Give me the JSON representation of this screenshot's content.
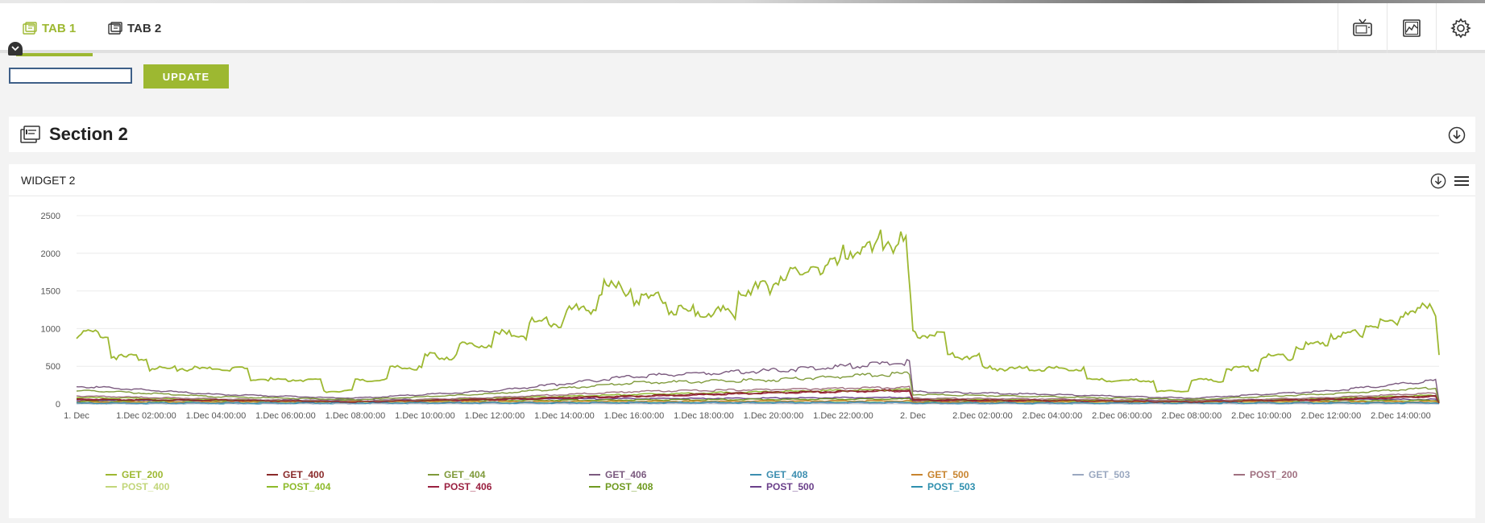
{
  "tabs": [
    {
      "label": "TAB 1",
      "active": true
    },
    {
      "label": "TAB 2",
      "active": false
    }
  ],
  "header_icons": [
    "tv-icon",
    "image-chart-icon",
    "gear-icon"
  ],
  "toolbar": {
    "search_value": "",
    "update_label": "UPDATE"
  },
  "section": {
    "title": "Section 2"
  },
  "widget": {
    "title": "WIDGET 2"
  },
  "colors": {
    "accent": "#9db831"
  },
  "chart_data": {
    "type": "line",
    "title": "",
    "xlabel": "",
    "ylabel": "",
    "ylim": [
      0,
      2500
    ],
    "yticks": [
      0,
      500,
      1000,
      1500,
      2000,
      2500
    ],
    "x_tick_labels": [
      "1. Dec",
      "1.Dec 02:00:00",
      "1.Dec 04:00:00",
      "1.Dec 06:00:00",
      "1.Dec 08:00:00",
      "1.Dec 10:00:00",
      "1.Dec 12:00:00",
      "1.Dec 14:00:00",
      "1.Dec 16:00:00",
      "1.Dec 18:00:00",
      "1.Dec 20:00:00",
      "1.Dec 22:00:00",
      "2. Dec",
      "2.Dec 02:00:00",
      "2.Dec 04:00:00",
      "2.Dec 06:00:00",
      "2.Dec 08:00:00",
      "2.Dec 10:00:00",
      "2.Dec 12:00:00",
      "2.Dec 14:00:00"
    ],
    "x_hours": [
      0,
      2,
      4,
      6,
      8,
      10,
      12,
      14,
      16,
      18,
      20,
      22,
      24,
      26,
      28,
      30,
      32,
      34,
      36,
      38
    ],
    "grid": true,
    "legend_position": "bottom",
    "series": [
      {
        "name": "GET_200",
        "color": "#9db831",
        "x": [
          0,
          0.4,
          0.9,
          1,
          2,
          2.1,
          4.9,
          5,
          7,
          7.1,
          7.9,
          8,
          8.9,
          9,
          9.9,
          10,
          10.9,
          11,
          11.9,
          12,
          12.9,
          13,
          13.9,
          14,
          14.9,
          15,
          15.9,
          16,
          16.9,
          17,
          17.9,
          18,
          18.9,
          19,
          19.9,
          20,
          20.9,
          21,
          21.9,
          22,
          22.9,
          23,
          23.8,
          24,
          24.9,
          25,
          25.9,
          26,
          28.9,
          29,
          30.9,
          31,
          31.9,
          32,
          32.9,
          33,
          33.9,
          34,
          34.9,
          35,
          35.9,
          36,
          36.9,
          37,
          37.9,
          38,
          38.9,
          39,
          39.1
        ],
        "y": [
          950,
          990,
          970,
          650,
          640,
          490,
          480,
          340,
          330,
          170,
          180,
          320,
          330,
          490,
          500,
          660,
          650,
          800,
          810,
          960,
          950,
          1120,
          1110,
          1280,
          1300,
          1600,
          1580,
          1420,
          1450,
          1280,
          1270,
          1270,
          1260,
          1600,
          1580,
          1750,
          1760,
          1890,
          1900,
          2100,
          2080,
          2240,
          2230,
          960,
          950,
          660,
          650,
          490,
          480,
          330,
          320,
          170,
          180,
          330,
          320,
          490,
          480,
          650,
          640,
          800,
          810,
          960,
          970,
          1120,
          1110,
          1280,
          1300,
          1300,
          650
        ]
      },
      {
        "name": "GET_400",
        "color": "#8a2a2a",
        "x": [
          0,
          4,
          8,
          12,
          16,
          20,
          23.9,
          24,
          28,
          32,
          36,
          39,
          39.1
        ],
        "y": [
          60,
          55,
          30,
          70,
          110,
          160,
          190,
          60,
          50,
          30,
          70,
          110,
          10
        ]
      },
      {
        "name": "GET_404",
        "color": "#7f9a3a",
        "x": [
          0,
          1,
          4,
          8,
          12,
          16,
          20,
          23.9,
          24,
          28,
          32,
          36,
          39,
          39.1
        ],
        "y": [
          180,
          170,
          100,
          60,
          140,
          290,
          330,
          420,
          130,
          100,
          60,
          140,
          220,
          20
        ]
      },
      {
        "name": "GET_406",
        "color": "#7b5a7f",
        "x": [
          0,
          1,
          4,
          8,
          12,
          16,
          20,
          23.9,
          24,
          28,
          32,
          36,
          39,
          39.1
        ],
        "y": [
          240,
          220,
          130,
          80,
          180,
          380,
          460,
          570,
          170,
          130,
          80,
          180,
          320,
          30
        ]
      },
      {
        "name": "GET_408",
        "color": "#3c8eb0",
        "x": [
          0,
          12,
          23.9,
          24,
          39,
          39.1
        ],
        "y": [
          15,
          20,
          25,
          15,
          20,
          5
        ]
      },
      {
        "name": "GET_500",
        "color": "#c8842e",
        "x": [
          0,
          12,
          23.9,
          24,
          39,
          39.1
        ],
        "y": [
          25,
          35,
          45,
          25,
          35,
          5
        ]
      },
      {
        "name": "GET_503",
        "color": "#9aa8c0",
        "x": [
          0,
          12,
          23.9,
          24,
          39,
          39.1
        ],
        "y": [
          8,
          12,
          15,
          8,
          12,
          2
        ]
      },
      {
        "name": "POST_200",
        "color": "#a07080",
        "x": [
          0,
          1,
          4,
          8,
          12,
          16,
          20,
          23.9,
          24,
          28,
          32,
          36,
          39,
          39.1
        ],
        "y": [
          110,
          100,
          70,
          40,
          90,
          170,
          200,
          230,
          80,
          70,
          40,
          90,
          150,
          15
        ]
      },
      {
        "name": "POST_400",
        "color": "#c2d67a",
        "x": [
          0,
          12,
          23.9,
          24,
          39,
          39.1
        ],
        "y": [
          20,
          30,
          40,
          20,
          30,
          5
        ]
      },
      {
        "name": "POST_404",
        "color": "#8dba2a",
        "x": [
          0,
          4,
          8,
          12,
          16,
          20,
          23.9,
          24,
          28,
          32,
          36,
          39,
          39.1
        ],
        "y": [
          90,
          60,
          40,
          80,
          130,
          170,
          200,
          70,
          50,
          40,
          80,
          120,
          10
        ]
      },
      {
        "name": "POST_406",
        "color": "#9a2040",
        "x": [
          0,
          4,
          8,
          12,
          16,
          20,
          23.9,
          24,
          28,
          32,
          36,
          39,
          39.1
        ],
        "y": [
          70,
          50,
          30,
          60,
          100,
          150,
          180,
          50,
          40,
          30,
          60,
          100,
          10
        ]
      },
      {
        "name": "POST_408",
        "color": "#6f9a20",
        "x": [
          0,
          12,
          23.9,
          24,
          39,
          39.1
        ],
        "y": [
          35,
          50,
          70,
          35,
          50,
          5
        ]
      },
      {
        "name": "POST_500",
        "color": "#6a3f8a",
        "x": [
          0,
          12,
          23.9,
          24,
          39,
          39.1
        ],
        "y": [
          45,
          65,
          90,
          45,
          65,
          5
        ]
      },
      {
        "name": "POST_503",
        "color": "#2e8fae",
        "x": [
          0,
          12,
          23.9,
          24,
          39,
          39.1
        ],
        "y": [
          10,
          15,
          20,
          10,
          15,
          3
        ]
      }
    ]
  }
}
